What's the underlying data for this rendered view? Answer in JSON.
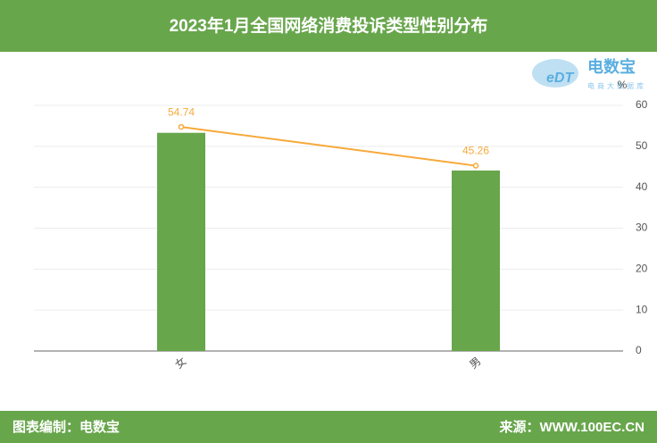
{
  "chart_data": {
    "type": "bar",
    "title": "2023年1月全国网络消费投诉类型性别分布",
    "categories": [
      "女",
      "男"
    ],
    "series": [
      {
        "type": "bar",
        "color": "#68a64c",
        "values": [
          53.3,
          44.1
        ]
      },
      {
        "type": "line",
        "color": "#f7a93b",
        "values": [
          54.74,
          45.26
        ]
      }
    ],
    "ylabel": "%",
    "ylim": [
      0,
      60
    ],
    "yticks": [
      0,
      10,
      20,
      30,
      40,
      50,
      60
    ],
    "grid": true
  },
  "logo": {
    "name": "电数宝",
    "tagline": "电商大数据库"
  },
  "footer": {
    "left": "图表编制：电数宝",
    "right": "来源：WWW.100EC.CN"
  }
}
